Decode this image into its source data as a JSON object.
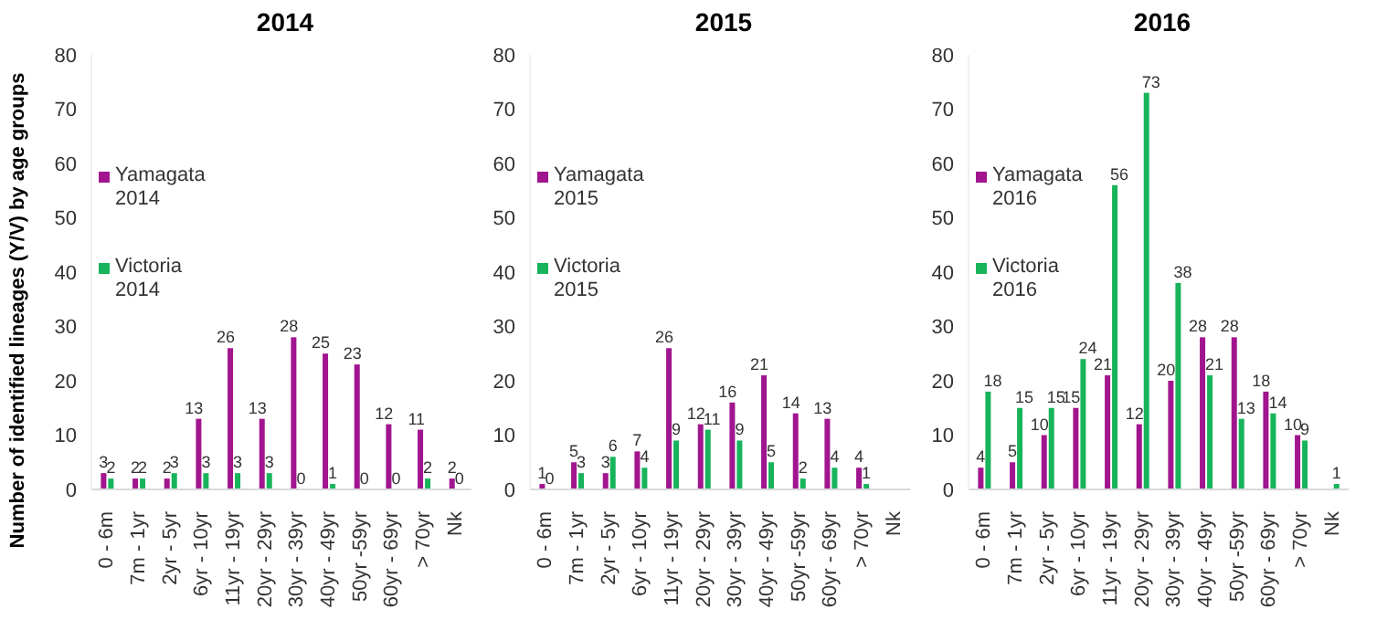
{
  "chart_data": [
    {
      "type": "bar",
      "title": "2014",
      "ylabel": "Number of identified lineages (Y/V) by age groups",
      "categories": [
        "0 - 6m",
        "7m - 1yr",
        "2yr - 5yr",
        "6yr - 10yr",
        "11yr - 19yr",
        "20yr - 29yr",
        "30yr - 39yr",
        "40yr - 49yr",
        "50yr -59yr",
        "60yr - 69yr",
        "> 70yr",
        "Nk"
      ],
      "series": [
        {
          "name": "Yamagata 2014",
          "color": "#a1158e",
          "values": [
            3,
            2,
            2,
            13,
            26,
            13,
            28,
            25,
            23,
            12,
            11,
            2
          ]
        },
        {
          "name": "Victoria 2014",
          "color": "#18b45b",
          "values": [
            2,
            2,
            3,
            3,
            3,
            3,
            0,
            1,
            0,
            0,
            2,
            0
          ]
        }
      ],
      "ylim": [
        0,
        80
      ],
      "yticks": [
        0,
        10,
        20,
        30,
        40,
        50,
        60,
        70,
        80
      ],
      "grid": false,
      "legend": "left",
      "data_labels": true
    },
    {
      "type": "bar",
      "title": "2015",
      "categories": [
        "0 - 6m",
        "7m - 1yr",
        "2yr - 5yr",
        "6yr - 10yr",
        "11yr - 19yr",
        "20yr - 29yr",
        "30yr - 39yr",
        "40yr - 49yr",
        "50yr -59yr",
        "60yr - 69yr",
        "> 70yr",
        "Nk"
      ],
      "series": [
        {
          "name": "Yamagata 2015",
          "color": "#a1158e",
          "values": [
            1,
            5,
            3,
            7,
            26,
            12,
            16,
            21,
            14,
            13,
            4,
            null
          ]
        },
        {
          "name": "Victoria 2015",
          "color": "#18b45b",
          "values": [
            0,
            3,
            6,
            4,
            9,
            11,
            9,
            5,
            2,
            4,
            1,
            null
          ]
        }
      ],
      "ylim": [
        0,
        80
      ],
      "yticks": [
        0,
        10,
        20,
        30,
        40,
        50,
        60,
        70,
        80
      ],
      "grid": false,
      "legend": "left",
      "data_labels": true
    },
    {
      "type": "bar",
      "title": "2016",
      "categories": [
        "0 - 6m",
        "7m - 1yr",
        "2yr - 5yr",
        "6yr - 10yr",
        "11yr - 19yr",
        "20yr - 29yr",
        "30yr - 39yr",
        "40yr - 49yr",
        "50yr -59yr",
        "60yr - 69yr",
        "> 70yr",
        "Nk"
      ],
      "series": [
        {
          "name": "Yamagata 2016",
          "color": "#a1158e",
          "values": [
            4,
            5,
            10,
            15,
            21,
            12,
            20,
            28,
            28,
            18,
            10,
            null
          ]
        },
        {
          "name": "Victoria 2016",
          "color": "#18b45b",
          "values": [
            18,
            15,
            15,
            24,
            56,
            73,
            38,
            21,
            13,
            14,
            9,
            1
          ]
        }
      ],
      "ylim": [
        0,
        80
      ],
      "yticks": [
        0,
        10,
        20,
        30,
        40,
        50,
        60,
        70,
        80
      ],
      "grid": false,
      "legend": "left",
      "data_labels": true
    }
  ]
}
